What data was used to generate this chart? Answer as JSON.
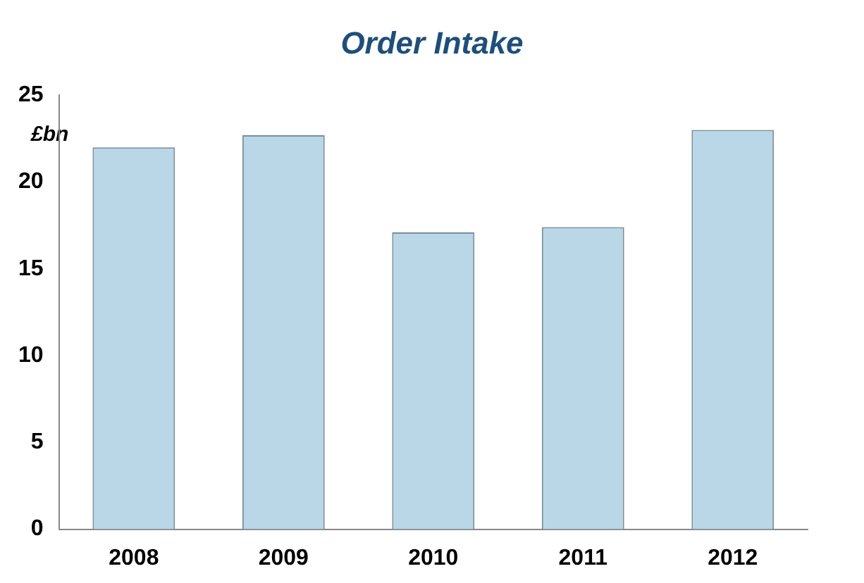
{
  "chart_data": {
    "type": "bar",
    "title": "Order Intake",
    "ylabel": "£bn",
    "categories": [
      "2008",
      "2009",
      "2010",
      "2011",
      "2012"
    ],
    "values": [
      22.0,
      22.7,
      17.1,
      17.4,
      23.0
    ],
    "color": "#b9d7e6",
    "ylim": [
      0,
      25
    ],
    "yticks": [
      0,
      5,
      10,
      15,
      20,
      25
    ],
    "grid": false,
    "legend": false
  }
}
